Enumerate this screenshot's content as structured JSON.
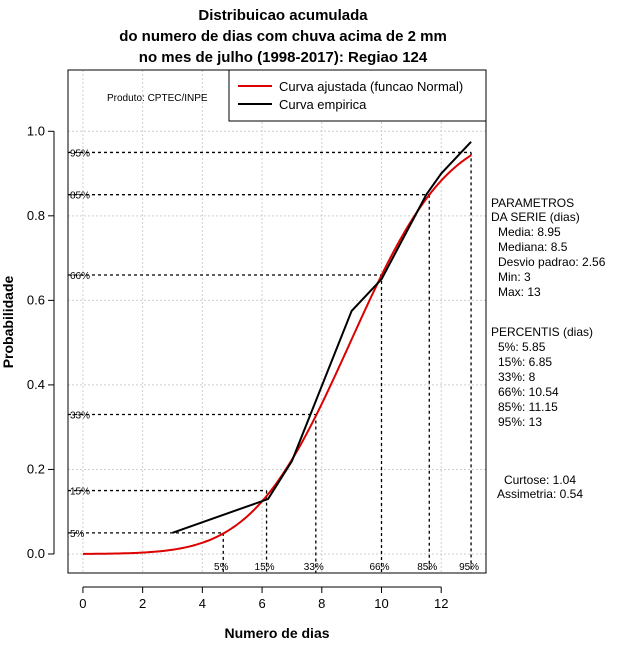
{
  "chart_data": {
    "type": "line",
    "title_lines": [
      "Distribuicao acumulada",
      "do numero de dias com chuva acima de 2 mm",
      "no mes de julho (1998-2017): Regiao 124"
    ],
    "xlabel": "Numero de dias",
    "ylabel": "Probabilidade",
    "xlim": [
      -0.5,
      13.5
    ],
    "ylim": [
      -0.045,
      1.145
    ],
    "x_ticks": [
      0,
      2,
      4,
      6,
      8,
      10,
      12
    ],
    "y_ticks": [
      0.0,
      0.2,
      0.4,
      0.6,
      0.8,
      1.0
    ],
    "x_tick_labels": [
      "0",
      "2",
      "4",
      "6",
      "8",
      "10",
      "12"
    ],
    "y_tick_labels": [
      "0.0",
      "0.2",
      "0.4",
      "0.6",
      "0.8",
      "1.0"
    ],
    "grid": true,
    "source_note": "Produto: CPTEC/INPE",
    "legend": {
      "position": "top-right",
      "entries": [
        "Curva ajustada (funcao Normal)",
        "Curva empirica"
      ],
      "colors": [
        "#dd0000",
        "#000000"
      ]
    },
    "normal_fit": {
      "mean": 8.95,
      "sd": 2.56,
      "x_range": [
        0,
        13
      ],
      "color": "#dd0000"
    },
    "series": [
      {
        "name": "Curva empirica",
        "color": "#000000",
        "x": [
          3,
          6.2,
          7,
          9,
          10,
          11.5,
          12,
          13
        ],
        "y": [
          0.05,
          0.13,
          0.22,
          0.575,
          0.65,
          0.85,
          0.9,
          0.975
        ]
      }
    ],
    "percentile_markers": [
      {
        "label": "5%",
        "p": 0.05,
        "x": 4.7
      },
      {
        "label": "15%",
        "p": 0.15,
        "x": 6.15
      },
      {
        "label": "33%",
        "p": 0.33,
        "x": 7.8
      },
      {
        "label": "66%",
        "p": 0.66,
        "x": 10.0
      },
      {
        "label": "85%",
        "p": 0.85,
        "x": 11.6
      },
      {
        "label": "95%",
        "p": 0.95,
        "x": 13.0
      }
    ],
    "parametros": {
      "heading": [
        "PARAMETROS",
        "DA SERIE (dias)"
      ],
      "lines": [
        "Media: 8.95",
        "Mediana: 8.5",
        "Desvio padrao: 2.56",
        "Min: 3",
        "Max: 13"
      ]
    },
    "percentis": {
      "heading": "PERCENTIS (dias)",
      "lines": [
        "5%: 5.85",
        "15%: 6.85",
        "33%: 8",
        "66%: 10.54",
        "85%: 11.15",
        "95%: 13"
      ]
    },
    "shape_stats": [
      "Curtose: 1.04",
      "Assimetria: 0.54"
    ]
  }
}
